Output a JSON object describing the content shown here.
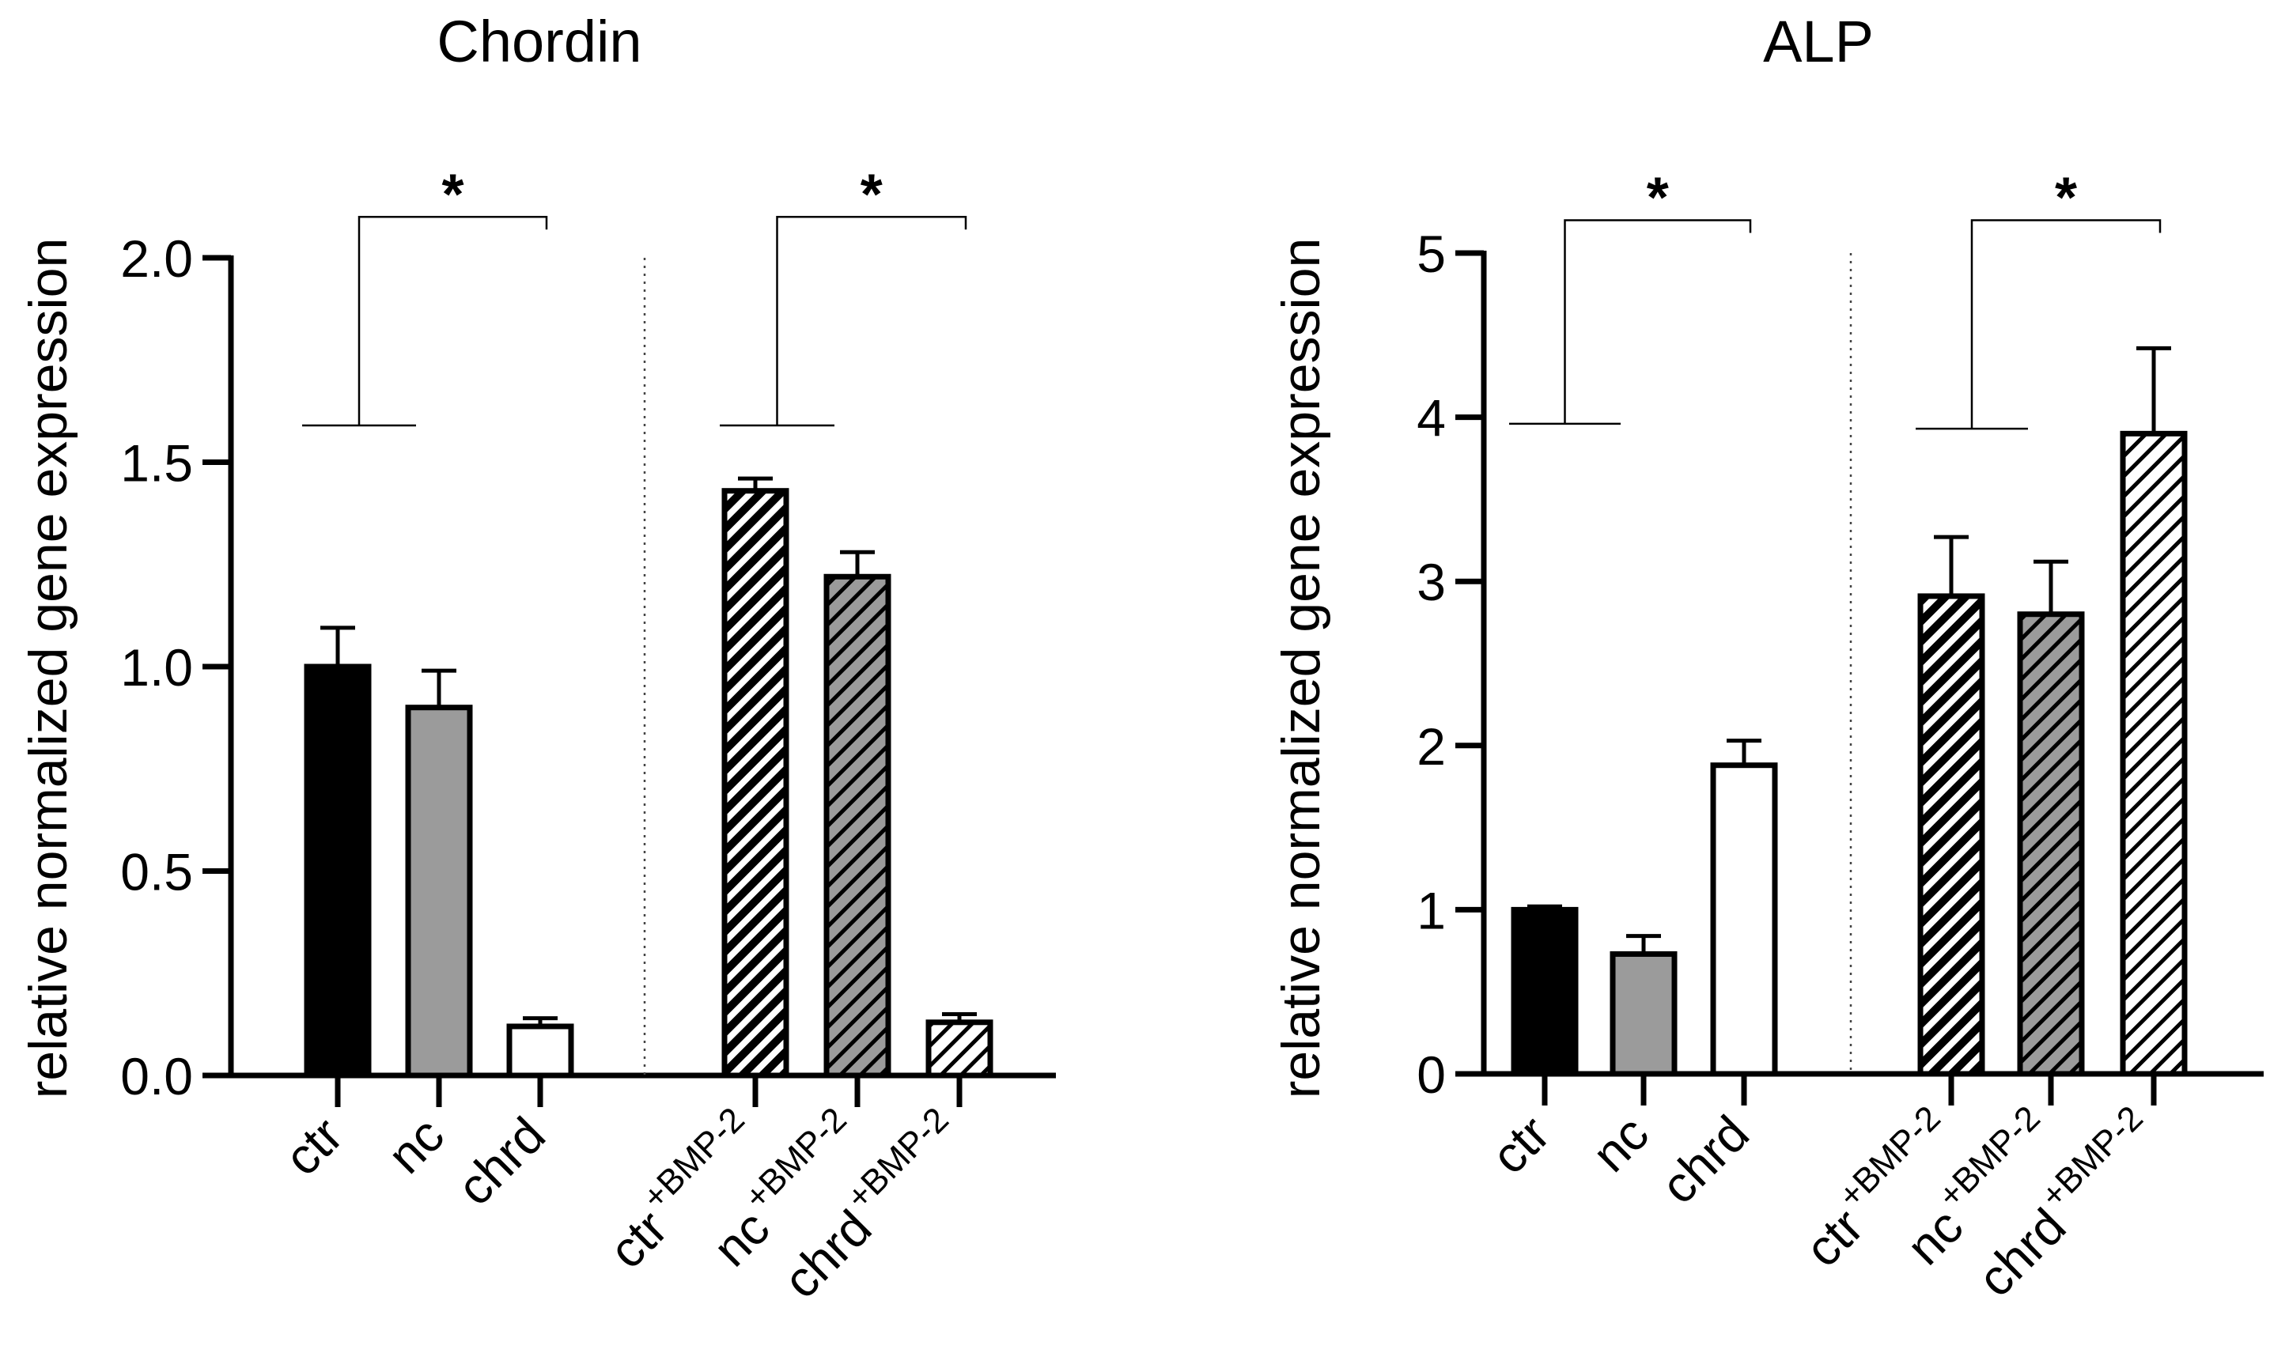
{
  "chart_data": [
    {
      "type": "bar",
      "title": "Chordin",
      "xlabel": "",
      "ylabel": "relative normalized gene expression",
      "ylim": [
        0,
        2.0
      ],
      "yticks": [
        "0.0",
        "0.5",
        "1.0",
        "1.5",
        "2.0"
      ],
      "categories": [
        {
          "base": "ctr",
          "sup": ""
        },
        {
          "base": "nc",
          "sup": ""
        },
        {
          "base": "chrd",
          "sup": ""
        },
        {
          "base": "ctr",
          "sup": "+BMP-2"
        },
        {
          "base": "nc",
          "sup": "+BMP-2"
        },
        {
          "base": "chrd",
          "sup": "+BMP-2"
        }
      ],
      "values": [
        1.0,
        0.9,
        0.12,
        1.43,
        1.22,
        0.13
      ],
      "errors": [
        0.095,
        0.09,
        0.02,
        0.03,
        0.06,
        0.02
      ],
      "fills": [
        "solid-black",
        "solid-gray",
        "solid-white",
        "hatch-black",
        "hatch-gray",
        "hatch-white"
      ],
      "significance": [
        {
          "label": "*",
          "group": [
            0,
            1
          ],
          "vs": 2,
          "left_level": 1.59,
          "top_level": 2.1
        },
        {
          "label": "*",
          "group": [
            3,
            4
          ],
          "vs": 5,
          "left_level": 1.59,
          "top_level": 2.1
        }
      ]
    },
    {
      "type": "bar",
      "title": "ALP",
      "xlabel": "",
      "ylabel": "relative normalized gene expression",
      "ylim": [
        0,
        5
      ],
      "yticks": [
        "0",
        "1",
        "2",
        "3",
        "4",
        "5"
      ],
      "categories": [
        {
          "base": "ctr",
          "sup": ""
        },
        {
          "base": "nc",
          "sup": ""
        },
        {
          "base": "chrd",
          "sup": ""
        },
        {
          "base": "ctr",
          "sup": "+BMP-2"
        },
        {
          "base": "nc",
          "sup": "+BMP-2"
        },
        {
          "base": "chrd",
          "sup": "+BMP-2"
        }
      ],
      "values": [
        1.0,
        0.73,
        1.88,
        2.91,
        2.8,
        3.9
      ],
      "errors": [
        0.02,
        0.11,
        0.15,
        0.36,
        0.32,
        0.52
      ],
      "fills": [
        "solid-black",
        "solid-gray",
        "solid-white",
        "hatch-black",
        "hatch-gray",
        "hatch-white"
      ],
      "significance": [
        {
          "label": "*",
          "group": [
            0,
            1
          ],
          "vs": 2,
          "left_level": 3.96,
          "top_level": 5.2
        },
        {
          "label": "*",
          "group": [
            3,
            4
          ],
          "vs": 5,
          "left_level": 3.93,
          "top_level": 5.2
        }
      ]
    }
  ]
}
